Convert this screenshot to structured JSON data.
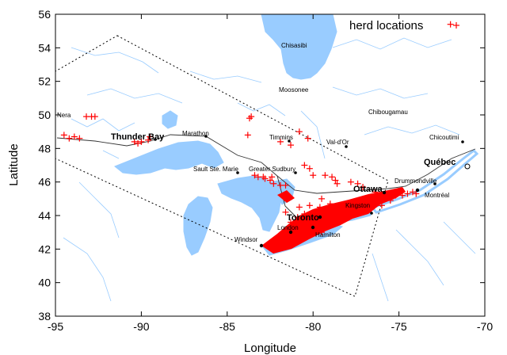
{
  "chart_data": {
    "type": "scatter",
    "title": "",
    "xlabel": "Longitude",
    "ylabel": "Latitude",
    "xlim": [
      -95,
      -70
    ],
    "ylim": [
      38,
      56
    ],
    "x_ticks": [
      -95,
      -90,
      -85,
      -80,
      -75,
      -70
    ],
    "y_ticks": [
      38,
      40,
      42,
      44,
      46,
      48,
      50,
      52,
      54,
      56
    ],
    "grid": false,
    "legend_position": "top-right",
    "series": [
      {
        "name": "herd locations",
        "marker": "+",
        "color": "#ff0000",
        "points": [
          [
            -94.5,
            48.8
          ],
          [
            -94.2,
            48.6
          ],
          [
            -93.9,
            48.7
          ],
          [
            -93.6,
            48.6
          ],
          [
            -93.2,
            49.9
          ],
          [
            -92.9,
            49.9
          ],
          [
            -92.7,
            49.9
          ],
          [
            -90.4,
            48.4
          ],
          [
            -90.2,
            48.3
          ],
          [
            -90.0,
            48.4
          ],
          [
            -89.6,
            48.5
          ],
          [
            -89.5,
            48.7
          ],
          [
            -83.7,
            49.8
          ],
          [
            -83.6,
            49.9
          ],
          [
            -83.8,
            48.8
          ],
          [
            -83.4,
            46.4
          ],
          [
            -83.2,
            46.3
          ],
          [
            -82.9,
            46.3
          ],
          [
            -82.8,
            46.2
          ],
          [
            -82.4,
            46.3
          ],
          [
            -82.5,
            46.1
          ],
          [
            -82.3,
            45.9
          ],
          [
            -81.9,
            45.8
          ],
          [
            -81.6,
            45.8
          ],
          [
            -81.9,
            48.4
          ],
          [
            -81.3,
            48.2
          ],
          [
            -80.8,
            49.0
          ],
          [
            -80.3,
            48.6
          ],
          [
            -80.5,
            47.0
          ],
          [
            -80.2,
            46.8
          ],
          [
            -80.0,
            46.4
          ],
          [
            -79.3,
            46.4
          ],
          [
            -78.9,
            46.3
          ],
          [
            -78.7,
            46.1
          ],
          [
            -78.6,
            45.9
          ],
          [
            -77.8,
            46.0
          ],
          [
            -77.4,
            45.9
          ],
          [
            -77.1,
            45.7
          ],
          [
            -76.4,
            45.4
          ],
          [
            -75.6,
            45.3
          ],
          [
            -75.2,
            45.2
          ],
          [
            -74.8,
            45.2
          ],
          [
            -74.5,
            45.3
          ],
          [
            -74.2,
            45.4
          ],
          [
            -74.0,
            45.3
          ],
          [
            -76.8,
            44.6
          ],
          [
            -76.0,
            44.6
          ],
          [
            -75.5,
            44.9
          ],
          [
            -77.0,
            44.3
          ],
          [
            -77.8,
            44.3
          ],
          [
            -78.5,
            44.2
          ],
          [
            -79.0,
            44.1
          ],
          [
            -79.4,
            43.8
          ],
          [
            -79.8,
            43.6
          ],
          [
            -80.3,
            43.6
          ],
          [
            -80.7,
            43.3
          ],
          [
            -81.2,
            43.0
          ],
          [
            -81.6,
            42.8
          ],
          [
            -82.0,
            42.6
          ],
          [
            -82.3,
            42.4
          ],
          [
            -80.5,
            44.1
          ],
          [
            -80.8,
            44.5
          ],
          [
            -80.2,
            44.6
          ],
          [
            -79.6,
            44.5
          ],
          [
            -79.0,
            44.7
          ],
          [
            -79.5,
            45.0
          ],
          [
            -78.3,
            44.6
          ],
          [
            -80.9,
            43.9
          ],
          [
            -81.3,
            43.6
          ],
          [
            -81.6,
            44.2
          ],
          [
            -80.0,
            43.1
          ],
          [
            -79.5,
            43.0
          ],
          [
            -80.5,
            42.8
          ],
          [
            -81.0,
            42.5
          ],
          [
            -81.7,
            42.3
          ],
          [
            -82.6,
            42.2
          ],
          [
            -72.0,
            55.4
          ]
        ]
      }
    ],
    "map_labels": [
      "Chisasibi",
      "Moosonee",
      "Chibougamau",
      "Timmins",
      "Val-d'Or",
      "Chicoutimi",
      "Marathon",
      "Thunder Bay",
      "Québec",
      "Sault Ste. Marie",
      "Greater Sudbury",
      "Drummondville",
      "Ottawa",
      "Montréal",
      "Kingston",
      "Toronto",
      "London",
      "Hamilton",
      "Windsor",
      "Nera"
    ],
    "colors": {
      "water": "#99ccff",
      "herds": "#ff0000",
      "roads": "#000000",
      "dotted_region": "#000000"
    }
  }
}
